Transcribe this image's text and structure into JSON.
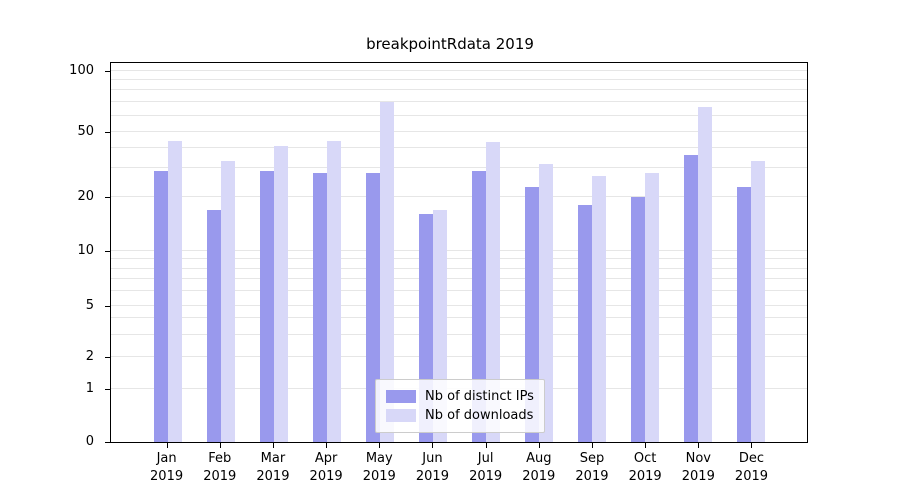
{
  "title": "breakpointRdata 2019",
  "chart_data": {
    "type": "bar",
    "title": "breakpointRdata 2019",
    "categories": [
      "Jan",
      "Feb",
      "Mar",
      "Apr",
      "May",
      "Jun",
      "Jul",
      "Aug",
      "Sep",
      "Oct",
      "Nov",
      "Dec"
    ],
    "year": "2019",
    "series": [
      {
        "name": "Nb of distinct IPs",
        "color": "#9999ed",
        "values": [
          29,
          17,
          29,
          28,
          28,
          16,
          29,
          23,
          18,
          20,
          36,
          23
        ]
      },
      {
        "name": "Nb of downloads",
        "color": "#d8d8f8",
        "values": [
          44,
          33,
          41,
          44,
          70,
          17,
          43,
          32,
          27,
          28,
          66,
          33
        ]
      }
    ],
    "yticks": [
      0,
      1,
      2,
      5,
      10,
      20,
      50,
      100
    ],
    "gridline_values": [
      1,
      2,
      3,
      4,
      5,
      6,
      7,
      8,
      9,
      10,
      20,
      30,
      40,
      50,
      60,
      70,
      80,
      90,
      100
    ],
    "ylim": [
      0,
      100
    ],
    "yscale": "log-like",
    "grid": true,
    "legend_position": "bottom-center"
  }
}
